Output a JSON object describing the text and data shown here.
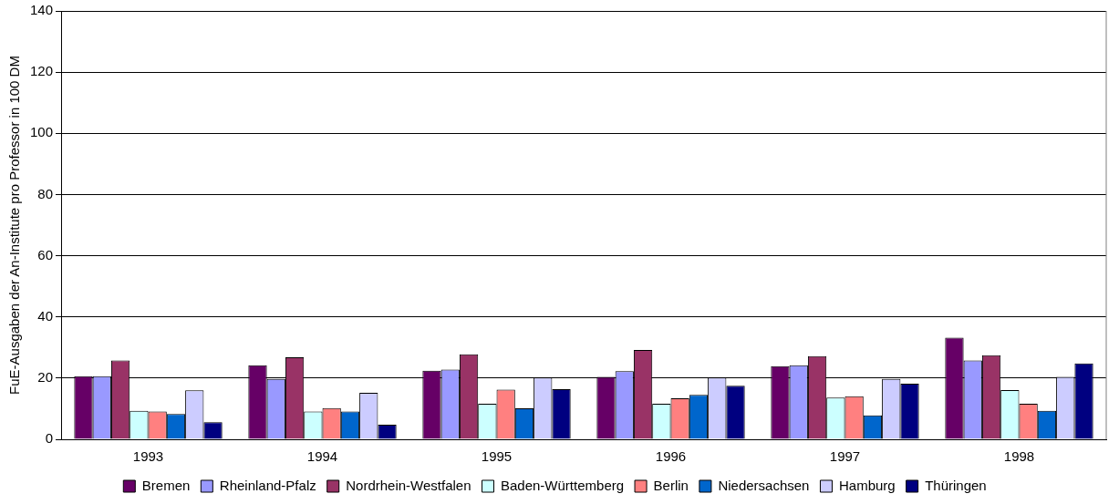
{
  "chart_data": {
    "type": "bar",
    "ylabel": "FuE-Ausgaben der An-Institute pro Professor in 100 DM",
    "categories": [
      "1993",
      "1994",
      "1995",
      "1996",
      "1997",
      "1998"
    ],
    "ylim": [
      0,
      140
    ],
    "yticks": [
      0,
      20,
      40,
      60,
      80,
      100,
      120,
      140
    ],
    "grid": "y",
    "legend": "bottom",
    "series": [
      {
        "name": "Bremen",
        "color": "#660066",
        "values": [
          20.6,
          24.2,
          22.4,
          20.4,
          23.9,
          33.2
        ]
      },
      {
        "name": "Rheinland-Pfalz",
        "color": "#9999ff",
        "values": [
          20.6,
          19.7,
          22.8,
          22.3,
          24.2,
          25.8
        ]
      },
      {
        "name": "Nordrhein-Westfalen",
        "color": "#993366",
        "values": [
          25.8,
          26.8,
          27.8,
          29.2,
          27.2,
          27.5
        ]
      },
      {
        "name": "Baden-Württemberg",
        "color": "#ccffff",
        "values": [
          9.3,
          9.1,
          11.6,
          11.6,
          13.6,
          16.1
        ]
      },
      {
        "name": "Berlin",
        "color": "#ff8080",
        "values": [
          9.1,
          10.2,
          16.2,
          13.4,
          14.1,
          11.6
        ]
      },
      {
        "name": "Niedersachsen",
        "color": "#0066cc",
        "values": [
          8.3,
          9.1,
          10.1,
          14.5,
          7.8,
          9.3
        ]
      },
      {
        "name": "Hamburg",
        "color": "#ccccff",
        "values": [
          16.0,
          15.2,
          20.2,
          20.2,
          19.7,
          20.4
        ]
      },
      {
        "name": "Thüringen",
        "color": "#000080",
        "values": [
          5.6,
          4.8,
          16.4,
          17.5,
          18.2,
          24.8
        ]
      }
    ]
  }
}
